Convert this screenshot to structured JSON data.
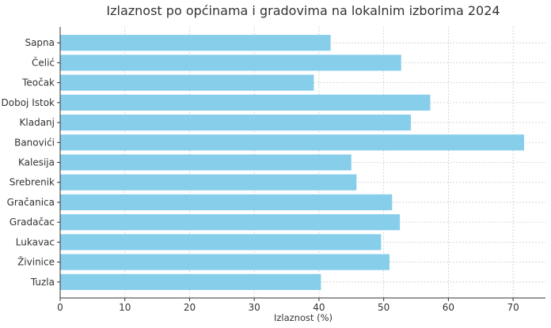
{
  "chart_data": {
    "type": "bar",
    "orientation": "horizontal",
    "title": "Izlaznost po općinama i gradovima na lokalnim izborima 2024",
    "xlabel": "Izlaznost (%)",
    "ylabel": "",
    "categories": [
      "Sapna",
      "Čelić",
      "Teočak",
      "Doboj Istok",
      "Kladanj",
      "Banovići",
      "Kalesija",
      "Srebrenik",
      "Gračanica",
      "Gradačac",
      "Lukavac",
      "Živinice",
      "Tuzla"
    ],
    "values": [
      41.8,
      52.7,
      39.2,
      57.2,
      54.2,
      71.7,
      45.0,
      45.8,
      51.3,
      52.5,
      49.6,
      50.9,
      40.3
    ],
    "xlim": [
      0,
      75
    ],
    "xticks": [
      "0",
      "10",
      "20",
      "30",
      "40",
      "50",
      "60",
      "70"
    ],
    "grid": true,
    "bar_color": "#87ceeb",
    "grid_color": "#cccccc"
  }
}
